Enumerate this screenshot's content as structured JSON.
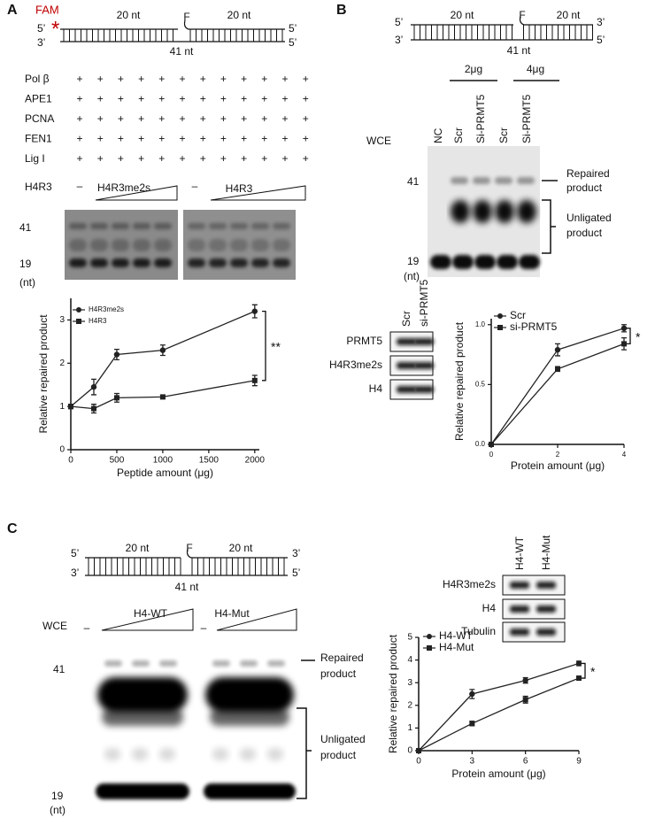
{
  "panels": {
    "a": {
      "label": "A",
      "substrate": {
        "tag": "FAM",
        "star": "*",
        "left_top": "5’",
        "left_bottom": "3’",
        "left_arm": "20 nt",
        "flap": "F",
        "right_arm": "20 nt",
        "right_top": "5’",
        "right_bottom": "5’",
        "length": "41 nt"
      },
      "reaction_rows": [
        {
          "name": "Pol β",
          "marks": [
            "+",
            "+",
            "+",
            "+",
            "+",
            "+",
            "+",
            "+",
            "+",
            "+",
            "+",
            "+"
          ]
        },
        {
          "name": "APE1",
          "marks": [
            "+",
            "+",
            "+",
            "+",
            "+",
            "+",
            "+",
            "+",
            "+",
            "+",
            "+",
            "+"
          ]
        },
        {
          "name": "PCNA",
          "marks": [
            "+",
            "+",
            "+",
            "+",
            "+",
            "+",
            "+",
            "+",
            "+",
            "+",
            "+",
            "+"
          ]
        },
        {
          "name": "FEN1",
          "marks": [
            "+",
            "+",
            "+",
            "+",
            "+",
            "+",
            "+",
            "+",
            "+",
            "+",
            "+",
            "+"
          ]
        },
        {
          "name": "Lig I",
          "marks": [
            "+",
            "+",
            "+",
            "+",
            "+",
            "+",
            "+",
            "+",
            "+",
            "+",
            "+",
            "+"
          ]
        }
      ],
      "peptide_row": {
        "name": "H4R3",
        "left_blank": "–",
        "left_peptide": "H4R3me2s",
        "right_blank": "–",
        "right_peptide": "H4R3"
      },
      "gel_markers": {
        "upper": "41",
        "lower": "19",
        "unit": "(nt)"
      }
    },
    "b": {
      "label": "B",
      "substrate": {
        "left_top": "5’",
        "left_bottom": "3’",
        "left_arm": "20  nt",
        "flap": "F",
        "right_arm": "20 nt",
        "right_top": "3’",
        "right_bottom": "5’",
        "length": "41 nt"
      },
      "amounts": [
        "2μg",
        "4μg"
      ],
      "lane_title": "WCE",
      "lanes": [
        "NC",
        "Scr",
        "Si-PRMT5",
        "Scr",
        "Si-PRMT5"
      ],
      "gel_markers": {
        "upper": "41",
        "lower": "19",
        "unit": "(nt)"
      },
      "repaired": [
        "Repaired",
        "product"
      ],
      "unligated": [
        "Unligated",
        "product"
      ],
      "western": {
        "lanes": [
          "Scr",
          "si-PRMT5"
        ],
        "rows": [
          "PRMT5",
          "H4R3me2s",
          "H4"
        ]
      }
    },
    "c": {
      "label": "C",
      "substrate": {
        "left_top": "5’",
        "left_bottom": "3’",
        "left_arm": "20  nt",
        "flap": "F",
        "right_arm": "20 nt",
        "right_top": "3’",
        "right_bottom": "5’",
        "length": "41 nt"
      },
      "lane_title": "WCE",
      "groups": {
        "left_blank": "–",
        "left": "H4-WT",
        "right_blank": "–",
        "right": "H4-Mut"
      },
      "gel_markers": {
        "upper": "41",
        "lower": "19",
        "unit": "(nt)"
      },
      "repaired": [
        "Repaired",
        "product"
      ],
      "unligated": [
        "Unligated",
        "product"
      ],
      "western": {
        "lanes": [
          "H4-WT",
          "H4-Mut"
        ],
        "rows": [
          "H4R3me2s",
          "H4",
          "Tubulin"
        ]
      }
    }
  },
  "chart_data": [
    {
      "type": "line",
      "x_label": "Peptide amount (μg)",
      "y_label": "Relative repaired product",
      "xlim": [
        0,
        2050
      ],
      "xticks": [
        0,
        500,
        1000,
        1500,
        2000
      ],
      "ylim": [
        0,
        3.5
      ],
      "yticks": [
        0,
        1,
        2,
        3
      ],
      "annotation": "**",
      "series": [
        {
          "name": "H4R3me2s",
          "color": "#222222",
          "marker": "circle",
          "x": [
            0,
            250,
            500,
            1000,
            2000
          ],
          "values": [
            1,
            1.45,
            2.2,
            2.3,
            3.2
          ],
          "errors": [
            0.05,
            0.18,
            0.12,
            0.12,
            0.15
          ]
        },
        {
          "name": "H4R3",
          "color": "#222222",
          "marker": "square",
          "x": [
            0,
            250,
            500,
            1000,
            2000
          ],
          "values": [
            1,
            0.95,
            1.2,
            1.22,
            1.6
          ],
          "errors": [
            0.05,
            0.1,
            0.1,
            0.04,
            0.12
          ]
        }
      ]
    },
    {
      "type": "line",
      "x_label": "Protein amount (μg)",
      "y_label": "Relative repaired product",
      "xlim": [
        0,
        4
      ],
      "xticks": [
        0,
        2,
        4
      ],
      "ylim": [
        0,
        1.05
      ],
      "yticks": [
        {
          "value": 0,
          "label": "0.0"
        },
        {
          "value": 0.5,
          "label": "0.5"
        },
        {
          "value": 1,
          "label": "1.0"
        }
      ],
      "annotation": "*",
      "series": [
        {
          "name": "Scr",
          "color": "#222222",
          "marker": "circle",
          "x": [
            0,
            2,
            4
          ],
          "values": [
            0,
            0.79,
            0.97
          ],
          "errors": [
            0,
            0.05,
            0.03
          ]
        },
        {
          "name": "si-PRMT5",
          "color": "#222222",
          "marker": "square",
          "x": [
            0,
            2,
            4
          ],
          "values": [
            0,
            0.63,
            0.84
          ],
          "errors": [
            0,
            0.02,
            0.05
          ]
        }
      ]
    },
    {
      "type": "line",
      "x_label": "Protein amount (μg)",
      "y_label": "Relative repaired product",
      "xlim": [
        0,
        9
      ],
      "xticks": [
        0,
        3,
        6,
        9
      ],
      "ylim": [
        0,
        5
      ],
      "yticks": [
        0,
        1,
        2,
        3,
        4,
        5
      ],
      "annotation": "*",
      "series": [
        {
          "name": "H4-WT",
          "color": "#222222",
          "marker": "circle",
          "x": [
            0,
            3,
            6,
            9
          ],
          "values": [
            0,
            2.5,
            3.1,
            3.85
          ],
          "errors": [
            0,
            0.2,
            0.12,
            0.1
          ]
        },
        {
          "name": "H4-Mut",
          "color": "#222222",
          "marker": "square",
          "x": [
            0,
            3,
            6,
            9
          ],
          "values": [
            0,
            1.2,
            2.25,
            3.2
          ],
          "errors": [
            0,
            0.1,
            0.15,
            0.05
          ]
        }
      ]
    }
  ]
}
